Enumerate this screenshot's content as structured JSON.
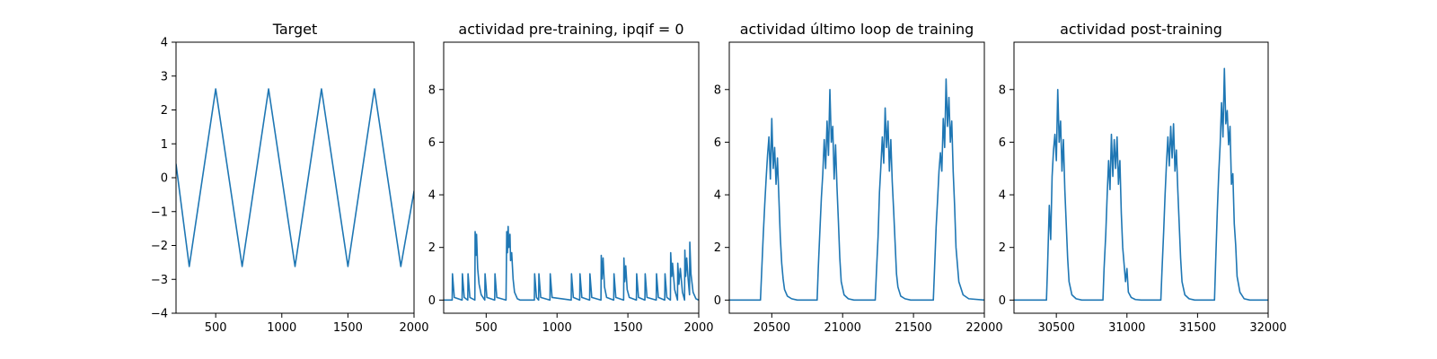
{
  "colors": {
    "series": "#1f77b4",
    "axes": "#000000",
    "background": "#ffffff"
  },
  "chart_data": [
    {
      "type": "line",
      "title": "Target",
      "xlim": [
        200,
        2000
      ],
      "ylim": [
        -4,
        4
      ],
      "xticks": [
        500,
        1000,
        1500,
        2000
      ],
      "yticks": [
        -4,
        -3,
        -2,
        -1,
        0,
        1,
        2,
        3,
        4
      ],
      "xtick_labels": [
        "500",
        "1000",
        "1500",
        "2000"
      ],
      "ytick_labels": [
        "−4",
        "−3",
        "−2",
        "−1",
        "0",
        "1",
        "2",
        "3",
        "4"
      ],
      "grid": false,
      "series": [
        {
          "x": [
            200,
            300,
            400,
            500,
            600,
            700,
            800,
            900,
            1000,
            1100,
            1200,
            1300,
            1400,
            1500,
            1600,
            1700,
            1800,
            1900,
            2000
          ],
          "values": [
            0.4,
            -2.62,
            0.0,
            2.62,
            0.0,
            -2.62,
            0.0,
            2.62,
            0.0,
            -2.62,
            0.0,
            2.62,
            0.0,
            -2.62,
            0.0,
            2.62,
            0.0,
            -2.62,
            -0.4
          ]
        }
      ]
    },
    {
      "type": "line",
      "title": "actividad pre-training, ipqif = 0",
      "xlim": [
        200,
        2000
      ],
      "ylim": [
        -0.5,
        9.8
      ],
      "xticks": [
        500,
        1000,
        1500,
        2000
      ],
      "yticks": [
        0,
        2,
        4,
        6,
        8
      ],
      "xtick_labels": [
        "500",
        "1000",
        "1500",
        "2000"
      ],
      "ytick_labels": [
        "0",
        "2",
        "4",
        "6",
        "8"
      ],
      "grid": false,
      "series": [
        {
          "x": [
            200,
            260,
            262,
            275,
            330,
            332,
            345,
            370,
            372,
            385,
            420,
            422,
            428,
            432,
            440,
            450,
            465,
            490,
            492,
            505,
            560,
            562,
            575,
            640,
            645,
            650,
            655,
            660,
            668,
            672,
            680,
            690,
            700,
            720,
            740,
            840,
            842,
            855,
            870,
            872,
            885,
            950,
            952,
            965,
            1100,
            1102,
            1115,
            1160,
            1162,
            1175,
            1230,
            1232,
            1245,
            1310,
            1312,
            1318,
            1325,
            1335,
            1350,
            1400,
            1402,
            1415,
            1470,
            1472,
            1478,
            1485,
            1495,
            1510,
            1560,
            1562,
            1575,
            1620,
            1622,
            1635,
            1700,
            1702,
            1715,
            1760,
            1762,
            1775,
            1800,
            1802,
            1810,
            1815,
            1830,
            1850,
            1852,
            1860,
            1870,
            1885,
            1900,
            1902,
            1908,
            1915,
            1925,
            1935,
            1937,
            1945,
            1960,
            1980,
            2000
          ],
          "values": [
            0,
            0,
            1.0,
            0.1,
            0,
            1.0,
            0.1,
            0,
            1.0,
            0.1,
            0,
            2.6,
            1.7,
            2.5,
            1.2,
            0.6,
            0.2,
            0,
            1.0,
            0.1,
            0,
            1.0,
            0.1,
            0,
            2.6,
            1.8,
            2.8,
            2.0,
            2.5,
            1.5,
            1.8,
            0.8,
            0.3,
            0.05,
            0,
            0,
            1.0,
            0.1,
            0,
            1.0,
            0.1,
            0,
            1.0,
            0.1,
            0,
            1.0,
            0.1,
            0,
            1.0,
            0.1,
            0,
            1.0,
            0.1,
            0,
            1.7,
            0.8,
            1.6,
            0.5,
            0.1,
            0,
            1.0,
            0.1,
            0,
            1.6,
            0.7,
            1.3,
            0.4,
            0.1,
            0,
            1.0,
            0.1,
            0,
            1.0,
            0.1,
            0,
            1.0,
            0.1,
            0,
            1.0,
            0.1,
            0,
            1.8,
            0.9,
            1.4,
            0.4,
            0,
            1.4,
            0.6,
            1.2,
            0.3,
            0,
            1.9,
            0.9,
            1.6,
            0.8,
            0.2,
            2.2,
            1.0,
            0.3,
            0.05,
            0
          ]
        }
      ]
    },
    {
      "type": "line",
      "title": "actividad último loop de training",
      "xlim": [
        20200,
        22000
      ],
      "ylim": [
        -0.5,
        9.8
      ],
      "xticks": [
        20500,
        21000,
        21500,
        22000
      ],
      "yticks": [
        0,
        2,
        4,
        6,
        8
      ],
      "xtick_labels": [
        "20500",
        "21000",
        "21500",
        "22000"
      ],
      "ytick_labels": [
        "0",
        "2",
        "4",
        "6",
        "8"
      ],
      "grid": false,
      "series": [
        {
          "x": [
            20200,
            20420,
            20428,
            20440,
            20450,
            20460,
            20470,
            20480,
            20490,
            20500,
            20510,
            20520,
            20530,
            20540,
            20550,
            20560,
            20570,
            20580,
            20590,
            20610,
            20640,
            20680,
            20820,
            20828,
            20840,
            20850,
            20860,
            20870,
            20880,
            20890,
            20900,
            20910,
            20920,
            20930,
            20940,
            20950,
            20960,
            20970,
            20980,
            20990,
            21010,
            21040,
            21080,
            21230,
            21238,
            21250,
            21260,
            21270,
            21280,
            21290,
            21300,
            21310,
            21320,
            21330,
            21340,
            21350,
            21360,
            21370,
            21380,
            21390,
            21410,
            21440,
            21480,
            21640,
            21648,
            21660,
            21670,
            21680,
            21690,
            21700,
            21710,
            21720,
            21730,
            21740,
            21750,
            21760,
            21770,
            21780,
            21790,
            21800,
            21820,
            21850,
            21890,
            22000
          ],
          "values": [
            0,
            0,
            1.0,
            2.5,
            3.6,
            4.6,
            5.5,
            6.2,
            4.6,
            6.9,
            5.0,
            5.8,
            4.4,
            5.4,
            3.9,
            2.4,
            1.4,
            0.8,
            0.4,
            0.15,
            0.05,
            0,
            0,
            1.2,
            2.7,
            3.9,
            4.8,
            6.1,
            5.0,
            6.8,
            5.5,
            8.0,
            6.0,
            6.6,
            4.6,
            5.9,
            4.3,
            3.0,
            1.6,
            0.7,
            0.2,
            0.05,
            0,
            0,
            1.0,
            2.4,
            4.1,
            5.1,
            6.2,
            5.2,
            7.3,
            5.8,
            6.8,
            4.9,
            6.1,
            4.5,
            3.4,
            2.2,
            1.0,
            0.5,
            0.15,
            0.05,
            0,
            0,
            1.1,
            2.8,
            3.8,
            4.9,
            5.6,
            4.9,
            6.9,
            5.8,
            8.4,
            6.6,
            7.7,
            6.0,
            6.8,
            4.9,
            3.6,
            2.0,
            0.7,
            0.2,
            0.05,
            0
          ]
        }
      ]
    },
    {
      "type": "line",
      "title": "actividad post-training",
      "xlim": [
        30200,
        32000
      ],
      "ylim": [
        -0.5,
        9.8
      ],
      "xticks": [
        30500,
        31000,
        31500,
        32000
      ],
      "yticks": [
        0,
        2,
        4,
        6,
        8
      ],
      "xtick_labels": [
        "30500",
        "31000",
        "31500",
        "32000"
      ],
      "ytick_labels": [
        "0",
        "2",
        "4",
        "6",
        "8"
      ],
      "grid": false,
      "series": [
        {
          "x": [
            30200,
            30430,
            30438,
            30450,
            30460,
            30470,
            30480,
            30490,
            30500,
            30510,
            30520,
            30530,
            30540,
            30550,
            30560,
            30570,
            30580,
            30590,
            30610,
            30640,
            30680,
            30830,
            30838,
            30850,
            30860,
            30870,
            30880,
            30890,
            30900,
            30910,
            30920,
            30930,
            30940,
            30950,
            30960,
            30970,
            30990,
            31000,
            31010,
            31030,
            31060,
            31100,
            31240,
            31248,
            31260,
            31270,
            31280,
            31290,
            31300,
            31310,
            31320,
            31330,
            31340,
            31350,
            31360,
            31370,
            31380,
            31390,
            31410,
            31440,
            31480,
            31620,
            31628,
            31640,
            31650,
            31660,
            31670,
            31680,
            31690,
            31700,
            31710,
            31720,
            31730,
            31740,
            31750,
            31760,
            31770,
            31780,
            31800,
            31830,
            31870,
            32000
          ],
          "values": [
            0,
            0,
            1.3,
            3.6,
            2.3,
            4.7,
            5.7,
            6.3,
            5.3,
            8.0,
            6.0,
            6.8,
            4.9,
            6.1,
            4.2,
            2.9,
            1.6,
            0.7,
            0.2,
            0.05,
            0,
            0,
            1.2,
            2.5,
            4.0,
            5.3,
            4.2,
            6.3,
            4.7,
            6.1,
            5.0,
            6.2,
            4.4,
            5.3,
            3.3,
            2.0,
            0.7,
            1.2,
            0.3,
            0.1,
            0.02,
            0,
            0,
            1.1,
            2.6,
            4.0,
            5.2,
            6.2,
            5.1,
            6.6,
            5.4,
            6.7,
            4.9,
            5.7,
            4.2,
            2.9,
            1.6,
            0.7,
            0.2,
            0.05,
            0,
            0,
            1.4,
            3.4,
            4.8,
            5.9,
            7.5,
            6.2,
            8.8,
            6.7,
            7.2,
            5.9,
            6.6,
            4.4,
            4.8,
            2.9,
            2.1,
            0.9,
            0.3,
            0.05,
            0,
            0
          ]
        }
      ]
    }
  ]
}
